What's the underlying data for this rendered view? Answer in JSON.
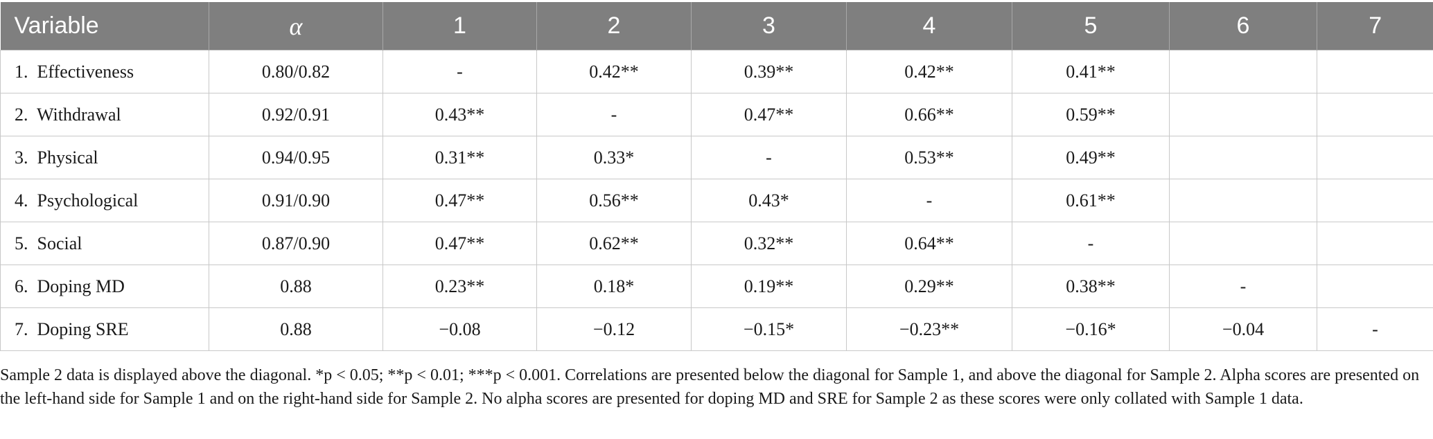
{
  "table": {
    "headers": [
      "Variable",
      "α",
      "1",
      "2",
      "3",
      "4",
      "5",
      "6",
      "7"
    ],
    "rows": [
      [
        "1.  Effectiveness",
        "0.80/0.82",
        "-",
        "0.42**",
        "0.39**",
        "0.42**",
        "0.41**",
        "",
        ""
      ],
      [
        "2.  Withdrawal",
        "0.92/0.91",
        "0.43**",
        "-",
        "0.47**",
        "0.66**",
        "0.59**",
        "",
        ""
      ],
      [
        "3.  Physical",
        "0.94/0.95",
        "0.31**",
        "0.33*",
        "-",
        "0.53**",
        "0.49**",
        "",
        ""
      ],
      [
        "4.  Psychological",
        "0.91/0.90",
        "0.47**",
        "0.56**",
        "0.43*",
        "-",
        "0.61**",
        "",
        ""
      ],
      [
        "5.  Social",
        "0.87/0.90",
        "0.47**",
        "0.62**",
        "0.32**",
        "0.64**",
        "-",
        "",
        ""
      ],
      [
        "6.  Doping MD",
        "0.88",
        "0.23**",
        "0.18*",
        "0.19**",
        "0.29**",
        "0.38**",
        "-",
        ""
      ],
      [
        "7.  Doping SRE",
        "0.88",
        "−0.08",
        "−0.12",
        "−0.15*",
        "−0.23**",
        "−0.16*",
        "−0.04",
        "-"
      ]
    ]
  },
  "note": {
    "text": "Sample 2 data is displayed above the diagonal. *p < 0.05; **p < 0.01; ***p < 0.001. Correlations are presented below the diagonal for Sample 1, and above the diagonal for Sample 2. Alpha scores are presented on the left-hand side for Sample 1 and on the right-hand side for Sample 2. No alpha scores are presented for doping MD and SRE for Sample 2 as these scores were only collated with Sample 1 data."
  }
}
